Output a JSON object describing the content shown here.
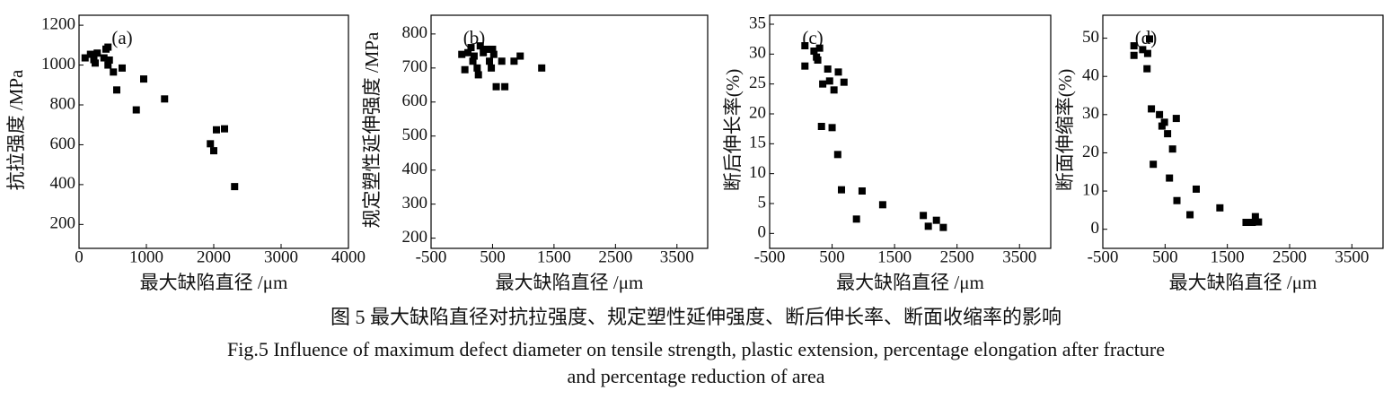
{
  "chart_data": [
    {
      "type": "scatter",
      "panel_label": "(a)",
      "x_label": "最大缺陷直径 /μm",
      "y_label": "抗拉强度 /MPa",
      "color": "#000000",
      "x": [
        90,
        170,
        220,
        240,
        270,
        370,
        400,
        430,
        430,
        450,
        510,
        560,
        640,
        850,
        960,
        1270,
        1950,
        2000,
        2040,
        2160,
        2310
      ],
      "values": [
        1036,
        1054,
        1027,
        1010,
        1060,
        1036,
        1080,
        1090,
        1000,
        1025,
        965,
        875,
        985,
        775,
        930,
        830,
        605,
        570,
        675,
        680,
        390
      ],
      "xlim": [
        0,
        4000
      ],
      "xticks": [
        0,
        1000,
        2000,
        3000,
        4000
      ],
      "ylim": [
        80,
        1250
      ],
      "yticks": [
        200,
        400,
        600,
        800,
        1000,
        1200
      ]
    },
    {
      "type": "scatter",
      "panel_label": "(b)",
      "x_label": "最大缺陷直径 /μm",
      "y_label": "规定塑性延伸强度 /MPa",
      "color": "#000000",
      "x": [
        0,
        50,
        100,
        150,
        180,
        200,
        250,
        270,
        300,
        350,
        400,
        450,
        480,
        500,
        520,
        560,
        650,
        700,
        850,
        950,
        1300
      ],
      "values": [
        740,
        695,
        745,
        760,
        720,
        735,
        700,
        680,
        765,
        745,
        755,
        720,
        700,
        755,
        740,
        645,
        720,
        645,
        720,
        735,
        700
      ],
      "xlim": [
        -500,
        4000
      ],
      "xticks": [
        -500,
        500,
        1500,
        2500,
        3500
      ],
      "ylim": [
        170,
        855
      ],
      "yticks": [
        200,
        300,
        400,
        500,
        600,
        700,
        800
      ]
    },
    {
      "type": "scatter",
      "panel_label": "(c)",
      "x_label": "最大缺陷直径 /μm",
      "y_label": "断后伸长率(%)",
      "color": "#000000",
      "x": [
        65,
        65,
        210,
        250,
        300,
        270,
        350,
        430,
        460,
        530,
        600,
        690,
        330,
        500,
        590,
        650,
        980,
        890,
        1310,
        1960,
        2040,
        2170,
        2280
      ],
      "values": [
        31.4,
        28,
        30.5,
        29.5,
        31,
        29,
        25,
        27.5,
        25.5,
        24,
        27,
        25.3,
        17.9,
        17.7,
        13.2,
        7.3,
        7.1,
        2.4,
        4.8,
        3.0,
        1.2,
        2.2,
        1.0
      ],
      "xlim": [
        -500,
        4000
      ],
      "xticks": [
        -500,
        500,
        1500,
        2500,
        3500
      ],
      "ylim": [
        -2.5,
        36.5
      ],
      "yticks": [
        0,
        5,
        10,
        15,
        20,
        25,
        30,
        35
      ]
    },
    {
      "type": "scatter",
      "panel_label": "(d)",
      "x_label": "最大缺陷直径 /μm",
      "y_label": "断面伸缩率(%)",
      "color": "#000000",
      "x": [
        0,
        0,
        140,
        220,
        250,
        210,
        280,
        310,
        410,
        450,
        490,
        540,
        680,
        620,
        570,
        690,
        900,
        1000,
        1380,
        1800,
        1900,
        1950,
        2000
      ],
      "values": [
        48,
        45.5,
        47,
        46,
        49.8,
        42,
        31.5,
        17,
        30,
        27,
        28,
        25,
        29,
        21,
        13.4,
        7.5,
        3.8,
        10.5,
        5.6,
        1.8,
        1.8,
        3.3,
        1.9
      ],
      "xlim": [
        -500,
        4000
      ],
      "xticks": [
        -500,
        500,
        1500,
        2500,
        3500
      ],
      "ylim": [
        -5,
        56
      ],
      "yticks": [
        0,
        10,
        20,
        30,
        40,
        50
      ]
    }
  ],
  "caption": {
    "zh": "图 5  最大缺陷直径对抗拉强度、规定塑性延伸强度、断后伸长率、断面收缩率的影响",
    "en": [
      "Fig.5  Influence of maximum defect diameter on tensile strength, plastic extension, percentage elongation after fracture",
      "and percentage reduction of area"
    ]
  }
}
